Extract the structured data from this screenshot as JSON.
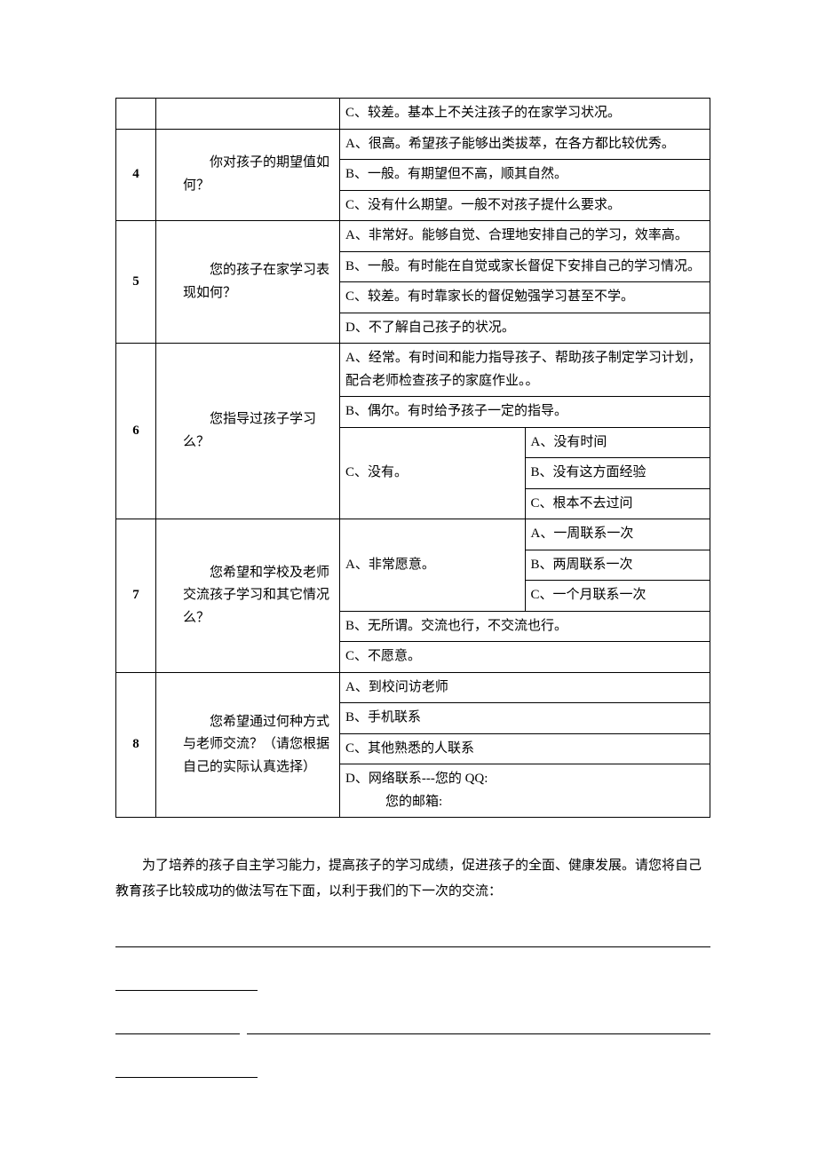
{
  "rows": [
    {
      "num": "",
      "question": "",
      "prefix": "C、",
      "text": "较差。基本上不关注孩子的在家学习状况。"
    },
    {
      "num": "4",
      "question": "　　你对孩子的期望值如何？",
      "answers": [
        {
          "prefix": "A、",
          "text": "很高。希望孩子能够出类拔萃，在各方都比较优秀。"
        },
        {
          "prefix": "B、",
          "text": "一般。有期望但不高，顺其自然。"
        },
        {
          "prefix": "C、",
          "text": "没有什么期望。一般不对孩子提什么要求。"
        }
      ]
    },
    {
      "num": "5",
      "question": "　　您的孩子在家学习表现如何？",
      "answers": [
        {
          "prefix": "A、",
          "text": "非常好。能够自觉、合理地安排自己的学习，效率高。"
        },
        {
          "prefix": "B、",
          "text": "一般。有时能在自觉或家长督促下安排自己的学习情况。"
        },
        {
          "prefix": "C、",
          "text": "较差。有时靠家长的督促勉强学习甚至不学。"
        },
        {
          "prefix": "D、",
          "text": "不了解自己孩子的状况。"
        }
      ]
    },
    {
      "num": "6",
      "question": "　　您指导过孩子学习么？",
      "answers_top": [
        {
          "prefix": "A、",
          "text": "经常。有时间和能力指导孩子、帮助孩子制定学习计划，配合老师检查孩子的家庭作业。。"
        },
        {
          "prefix": "B、",
          "text": "偶尔。有时给予孩子一定的指导。"
        }
      ],
      "c_label": "C、没有。",
      "c_subs": [
        {
          "prefix": "A、",
          "text": "没有时间"
        },
        {
          "prefix": "B、",
          "text": "没有这方面经验"
        },
        {
          "prefix": "C、",
          "text": "根本不去过问"
        }
      ]
    },
    {
      "num": "7",
      "question": "　　您希望和学校及老师交流孩子学习和其它情况么？",
      "a_label": "A、非常愿意。",
      "a_subs": [
        {
          "prefix": "A、",
          "text": "一周联系一次"
        },
        {
          "prefix": "B、",
          "text": "两周联系一次"
        },
        {
          "prefix": "C、",
          "text": "一个月联系一次"
        }
      ],
      "answers_bottom": [
        {
          "prefix": "B、",
          "text": "无所谓。交流也行，不交流也行。"
        },
        {
          "prefix": "C、",
          "text": "不愿意。"
        }
      ]
    },
    {
      "num": "8",
      "question": "　　您希望通过何种方式与老师交流？（请您根据自己的实际认真选择）",
      "answers": [
        {
          "prefix": "A、",
          "text": "到校问访老师"
        },
        {
          "prefix": "B、",
          "text": "手机联系"
        },
        {
          "prefix": "C、",
          "text": "其他熟悉的人联系"
        }
      ],
      "d_lines": [
        "D、网络联系---您的 QQ:",
        "　　　您的邮箱:"
      ]
    }
  ],
  "closing": "为了培养的孩子自主学习能力，提高孩子的学习成绩，促进孩子的全面、健康发展。请您将自己教育孩子比较成功的做法写在下面，以利于我们的下一次的交流："
}
